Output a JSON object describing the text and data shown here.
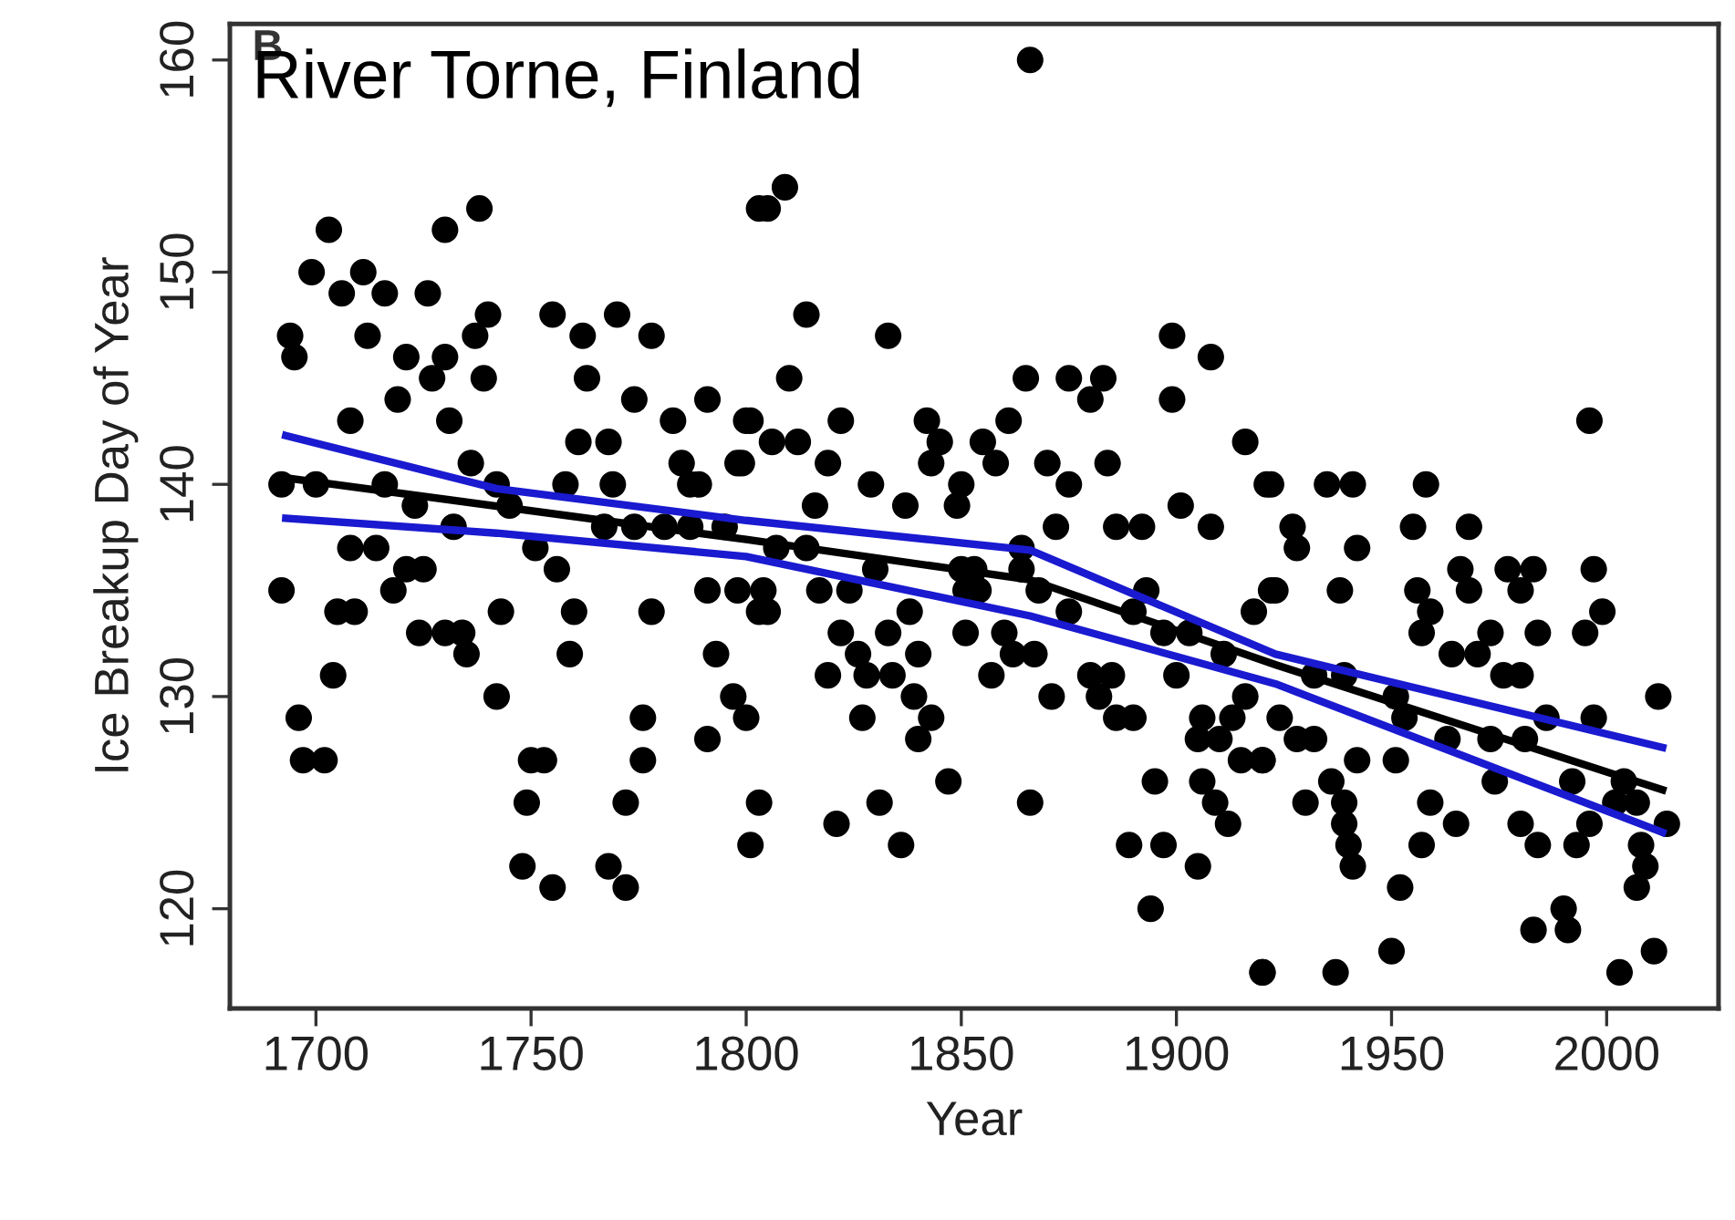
{
  "chart_data": {
    "type": "scatter",
    "xlabel": "Year",
    "ylabel": "Ice Breakup Day of Year",
    "annotations": [
      "B",
      "River Torne, Finland"
    ],
    "xlim": [
      1680,
      2026
    ],
    "ylim": [
      115.3,
      161.7
    ],
    "xticks": [
      1700,
      1750,
      1800,
      1850,
      1900,
      1950,
      2000
    ],
    "yticks": [
      120,
      130,
      140,
      150,
      160
    ],
    "grid": false,
    "legend": false,
    "series": [
      {
        "marker": "circle",
        "color": "#000000",
        "x": [
          1703,
          1730,
          1738,
          1699,
          1711,
          1706,
          1716,
          1726,
          1740,
          1755,
          1770,
          1694,
          1712,
          1762,
          1778,
          1695,
          1721,
          1730,
          1737,
          1727,
          1739,
          1763,
          1719,
          1774,
          1791,
          1708,
          1731,
          1783,
          1800,
          1761,
          1768,
          1785,
          1798,
          1736,
          1789,
          1692,
          1700,
          1716,
          1758,
          1769,
          1803,
          1866,
          1809,
          1805,
          1814,
          1833,
          1899,
          1908,
          1810,
          1865,
          1875,
          1883,
          1880,
          1899,
          1801,
          1822,
          1842,
          1861,
          1806,
          1812,
          1845,
          1855,
          1916,
          1799,
          1819,
          1843,
          1858,
          1870,
          1884,
          1829,
          1850,
          1875,
          1921,
          1901,
          1996,
          1922,
          1935,
          1941,
          1958,
          1723,
          1732,
          1742,
          1745,
          1787,
          1767,
          1774,
          1781,
          1787,
          1795,
          1708,
          1714,
          1751,
          1721,
          1725,
          1756,
          1692,
          1718,
          1791,
          1798,
          1705,
          1709,
          1743,
          1760,
          1778,
          1803,
          1724,
          1730,
          1734,
          1735,
          1759,
          1793,
          1704,
          1742,
          1797,
          1696,
          1776,
          1800,
          1791,
          1697,
          1702,
          1750,
          1753,
          1776,
          1749,
          1772,
          1803,
          1801,
          1748,
          1768,
          1755,
          1772,
          1837,
          1849,
          1908,
          1872,
          1886,
          1892,
          1816,
          1807,
          1814,
          1830,
          1850,
          1853,
          1864,
          1864,
          1851,
          1854,
          1868,
          1804,
          1817,
          1824,
          1805,
          1838,
          1875,
          1893,
          1890,
          1918,
          1922,
          1822,
          1833,
          1851,
          1860,
          1897,
          1903,
          1826,
          1840,
          1862,
          1867,
          1911,
          1819,
          1828,
          1834,
          1857,
          1880,
          1885,
          1900,
          1916,
          1839,
          1871,
          1882,
          1827,
          1843,
          1886,
          1890,
          1906,
          1913,
          1840,
          1905,
          1910,
          1915,
          1920,
          1906,
          1909,
          1895,
          1847,
          1831,
          1866,
          1912,
          1821,
          1836,
          1889,
          1897,
          1905,
          1894,
          1920,
          1927,
          1928,
          1942,
          1955,
          1968,
          1923,
          1938,
          1956,
          1966,
          1968,
          1977,
          1983,
          1980,
          1997,
          1959,
          1957,
          1999,
          1995,
          1984,
          1973,
          1964,
          1970,
          1976,
          1980,
          2012,
          1932,
          1939,
          1924,
          1932,
          1928,
          1951,
          1953,
          1986,
          1997,
          1963,
          1973,
          1981,
          1920,
          1942,
          1951,
          1936,
          1974,
          1992,
          2004,
          1930,
          1939,
          1959,
          2002,
          2007,
          1939,
          1965,
          1980,
          1996,
          2014,
          1984,
          1993,
          1957,
          2008,
          1940,
          1941,
          2009,
          2007,
          1952,
          1990,
          1983,
          1991,
          1920,
          1937,
          1950,
          2011,
          2003
        ],
        "values": [
          152,
          152,
          153,
          150,
          150,
          149,
          149,
          149,
          148,
          148,
          148,
          147,
          147,
          147,
          147,
          146,
          146,
          146,
          147,
          145,
          145,
          145,
          144,
          144,
          144,
          143,
          143,
          143,
          143,
          142,
          142,
          141,
          141,
          141,
          140,
          140,
          140,
          140,
          140,
          140,
          153,
          160,
          154,
          153,
          148,
          147,
          147,
          146,
          145,
          145,
          145,
          145,
          144,
          144,
          143,
          143,
          143,
          143,
          142,
          142,
          142,
          142,
          142,
          141,
          141,
          141,
          141,
          141,
          141,
          140,
          140,
          140,
          140,
          139,
          143,
          140,
          140,
          140,
          140,
          139,
          138,
          140,
          139,
          140,
          138,
          138,
          138,
          138,
          138,
          137,
          137,
          137,
          136,
          136,
          136,
          135,
          135,
          135,
          135,
          134,
          134,
          134,
          134,
          134,
          134,
          133,
          133,
          133,
          132,
          132,
          132,
          131,
          130,
          130,
          129,
          129,
          129,
          128,
          127,
          127,
          127,
          127,
          127,
          125,
          125,
          125,
          123,
          122,
          122,
          121,
          121,
          139,
          139,
          138,
          138,
          138,
          138,
          139,
          137,
          137,
          136,
          136,
          136,
          136,
          137,
          135,
          135,
          135,
          135,
          135,
          135,
          134,
          134,
          134,
          135,
          134,
          134,
          135,
          133,
          133,
          133,
          133,
          133,
          133,
          132,
          132,
          132,
          132,
          132,
          131,
          131,
          131,
          131,
          131,
          131,
          131,
          130,
          130,
          130,
          130,
          129,
          129,
          129,
          129,
          129,
          129,
          128,
          128,
          128,
          127,
          127,
          126,
          125,
          126,
          126,
          125,
          125,
          124,
          124,
          123,
          123,
          123,
          122,
          120,
          117,
          138,
          137,
          137,
          138,
          138,
          135,
          135,
          135,
          136,
          135,
          136,
          136,
          135,
          136,
          134,
          133,
          134,
          133,
          133,
          133,
          132,
          132,
          131,
          131,
          130,
          131,
          131,
          129,
          128,
          128,
          130,
          129,
          129,
          129,
          128,
          128,
          128,
          127,
          127,
          127,
          126,
          126,
          126,
          126,
          125,
          125,
          125,
          125,
          125,
          124,
          124,
          124,
          124,
          124,
          123,
          123,
          123,
          123,
          123,
          122,
          122,
          121,
          121,
          120,
          119,
          119,
          117,
          117,
          118,
          118,
          117
        ]
      },
      {
        "type": "line",
        "color": "#000000",
        "x": [
          1693,
          1800,
          1866,
          1923,
          2013
        ],
        "values": [
          140.3,
          137.4,
          135.5,
          131.5,
          125.6
        ]
      },
      {
        "type": "line",
        "color": "#1a1ad0",
        "x": [
          1693,
          1742,
          1800,
          1866,
          1923,
          2013
        ],
        "values": [
          142.3,
          139.8,
          138.3,
          136.9,
          132,
          127.6
        ]
      },
      {
        "type": "line",
        "color": "#1a1ad0",
        "x": [
          1693,
          1742,
          1800,
          1866,
          1923,
          2013
        ],
        "values": [
          138.4,
          137.7,
          136.6,
          133.8,
          130.6,
          123.6
        ]
      }
    ]
  }
}
